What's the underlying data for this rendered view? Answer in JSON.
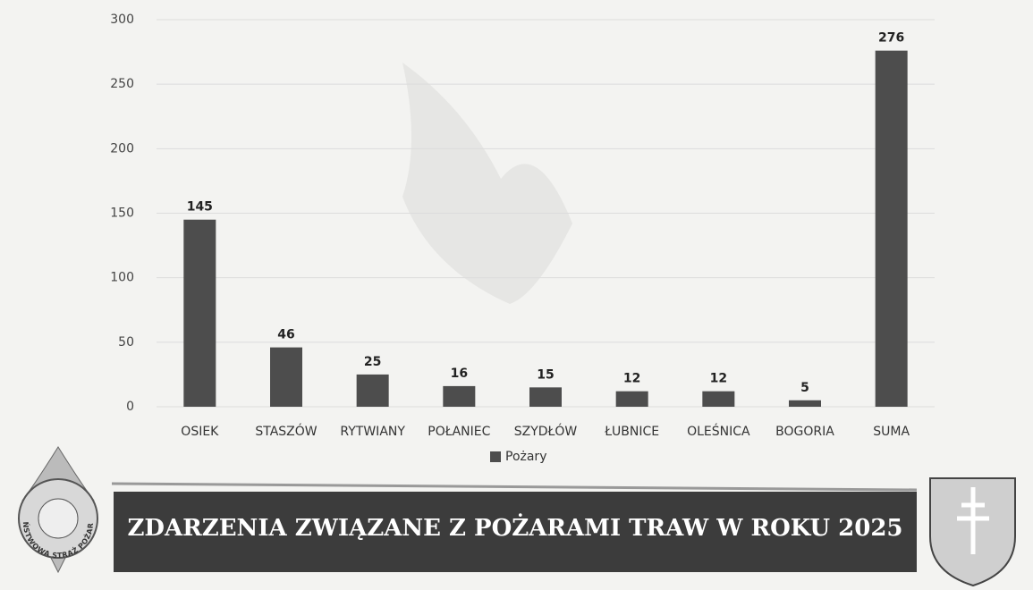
{
  "chart_data": {
    "type": "bar",
    "title": "ZDARZENIA ZWIĄZANE Z POŻARAMI TRAW W ROKU 2025",
    "categories": [
      "OSIEK",
      "STASZÓW",
      "RYTWIANY",
      "POŁANIEC",
      "SZYDŁÓW",
      "ŁUBNICE",
      "OLEŚNICA",
      "BOGORIA",
      "SUMA"
    ],
    "series": [
      {
        "name": "Pożary",
        "color": "#4d4d4d",
        "values": [
          145,
          46,
          25,
          16,
          15,
          12,
          12,
          5,
          276
        ]
      }
    ],
    "ylim": [
      0,
      300
    ],
    "yticks": [
      0,
      50,
      100,
      150,
      200,
      250,
      300
    ],
    "grid": true,
    "legend": "bottom",
    "logo_text": "PAŃSTWOWA STRAŻ POŻARNA"
  }
}
